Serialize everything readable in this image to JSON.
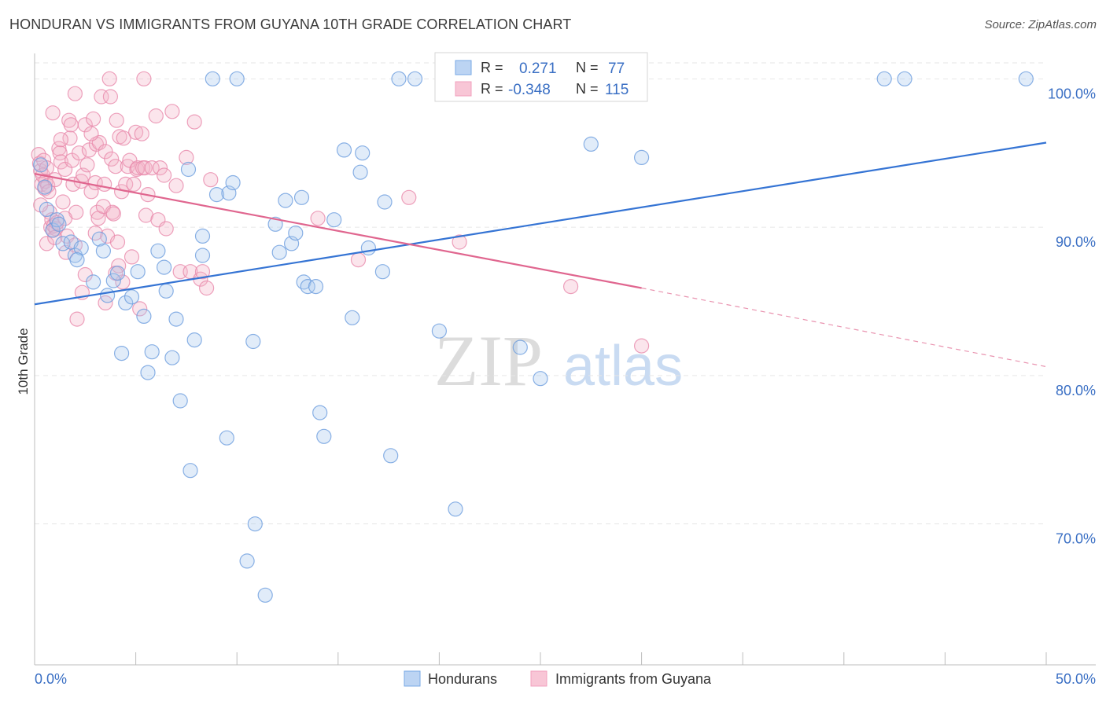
{
  "title": "HONDURAN VS IMMIGRANTS FROM GUYANA 10TH GRADE CORRELATION CHART",
  "source": "Source: ZipAtlas.com",
  "watermark": {
    "zip": "ZIP",
    "atlas": "atlas"
  },
  "legend_box": {
    "rows": [
      {
        "r_label": "R =",
        "r_value": "0.271",
        "n_label": "N =",
        "n_value": "77",
        "color": "#7aaae6"
      },
      {
        "r_label": "R =",
        "r_value": "-0.348",
        "n_label": "N =",
        "n_value": "115",
        "color": "#f2a0bd"
      }
    ]
  },
  "bottom_legend": [
    {
      "label": "Hondurans",
      "color": "#7aaae6"
    },
    {
      "label": "Immigrants from Guyana",
      "color": "#f2a0bd"
    }
  ],
  "chart_data": {
    "type": "scatter",
    "title": "HONDURAN VS IMMIGRANTS FROM GUYANA 10TH GRADE CORRELATION CHART",
    "xlabel": "",
    "ylabel": "10th Grade",
    "xlim": [
      0,
      50
    ],
    "ylim": [
      60.5,
      101.5
    ],
    "x_tick_labels": [
      "0.0%",
      "50.0%"
    ],
    "y_ticks": [
      70,
      80,
      90,
      100
    ],
    "y_tick_labels": [
      "70.0%",
      "80.0%",
      "90.0%",
      "100.0%"
    ],
    "grid": true,
    "colors": {
      "hondurans": "#3574d4",
      "guyana": "#e0668f"
    },
    "series": [
      {
        "name": "Hondurans",
        "trend": {
          "x": [
            0.0,
            50.0
          ],
          "y": [
            84.8,
            95.7
          ]
        },
        "points": [
          [
            0.6,
            91.2
          ],
          [
            0.9,
            89.8
          ],
          [
            1.1,
            90.5
          ],
          [
            1.4,
            88.9
          ],
          [
            1.8,
            89.0
          ],
          [
            2.0,
            88.1
          ],
          [
            2.3,
            88.6
          ],
          [
            2.1,
            87.8
          ],
          [
            2.9,
            86.3
          ],
          [
            3.2,
            89.2
          ],
          [
            3.4,
            88.4
          ],
          [
            3.6,
            85.4
          ],
          [
            3.9,
            86.4
          ],
          [
            4.1,
            86.9
          ],
          [
            4.3,
            81.5
          ],
          [
            4.5,
            84.9
          ],
          [
            4.8,
            85.3
          ],
          [
            5.1,
            87.0
          ],
          [
            5.4,
            84.0
          ],
          [
            5.6,
            80.2
          ],
          [
            5.8,
            81.6
          ],
          [
            6.1,
            88.4
          ],
          [
            6.4,
            87.3
          ],
          [
            6.5,
            85.7
          ],
          [
            6.8,
            81.2
          ],
          [
            7.0,
            83.8
          ],
          [
            7.2,
            78.3
          ],
          [
            7.6,
            93.9
          ],
          [
            7.7,
            73.6
          ],
          [
            7.9,
            82.4
          ],
          [
            8.3,
            89.4
          ],
          [
            8.3,
            88.1
          ],
          [
            8.8,
            100.0
          ],
          [
            9.0,
            92.2
          ],
          [
            9.5,
            75.8
          ],
          [
            9.6,
            92.3
          ],
          [
            9.8,
            93.0
          ],
          [
            10.0,
            100.0
          ],
          [
            10.5,
            67.5
          ],
          [
            10.8,
            82.3
          ],
          [
            10.9,
            70.0
          ],
          [
            11.4,
            65.2
          ],
          [
            11.9,
            90.2
          ],
          [
            12.1,
            88.3
          ],
          [
            12.4,
            91.8
          ],
          [
            12.7,
            88.9
          ],
          [
            12.9,
            89.6
          ],
          [
            13.2,
            92.0
          ],
          [
            13.3,
            86.3
          ],
          [
            13.5,
            86.0
          ],
          [
            13.9,
            86.0
          ],
          [
            14.1,
            77.5
          ],
          [
            14.3,
            75.9
          ],
          [
            14.8,
            90.5
          ],
          [
            15.3,
            95.2
          ],
          [
            15.7,
            83.9
          ],
          [
            16.1,
            93.7
          ],
          [
            16.2,
            95.0
          ],
          [
            16.5,
            88.6
          ],
          [
            17.2,
            87.0
          ],
          [
            17.3,
            91.7
          ],
          [
            17.6,
            74.6
          ],
          [
            18.0,
            100.0
          ],
          [
            18.8,
            100.0
          ],
          [
            20.0,
            83.0
          ],
          [
            20.8,
            71.0
          ],
          [
            24.0,
            81.9
          ],
          [
            25.0,
            79.8
          ],
          [
            27.5,
            95.6
          ],
          [
            28.0,
            100.0
          ],
          [
            30.0,
            94.7
          ],
          [
            42.0,
            100.0
          ],
          [
            43.0,
            100.0
          ],
          [
            49.0,
            100.0
          ],
          [
            0.3,
            94.2
          ],
          [
            0.5,
            92.7
          ],
          [
            1.2,
            90.2
          ]
        ]
      },
      {
        "name": "Immigrants from Guyana",
        "trend": {
          "x": [
            0.0,
            30.0
          ],
          "y": [
            93.6,
            85.9
          ]
        },
        "trend_dashed": {
          "x": [
            30.0,
            50.0
          ],
          "y": [
            85.9,
            80.6
          ]
        },
        "points": [
          [
            0.2,
            94.9
          ],
          [
            0.25,
            94.3
          ],
          [
            0.3,
            93.8
          ],
          [
            0.35,
            92.9
          ],
          [
            0.4,
            93.5
          ],
          [
            0.45,
            94.5
          ],
          [
            0.5,
            92.6
          ],
          [
            0.55,
            93.1
          ],
          [
            0.6,
            94.0
          ],
          [
            0.65,
            92.8
          ],
          [
            0.7,
            92.4
          ],
          [
            0.75,
            91.0
          ],
          [
            0.8,
            90.0
          ],
          [
            0.85,
            90.5
          ],
          [
            0.9,
            89.8
          ],
          [
            0.95,
            90.1
          ],
          [
            1.0,
            93.2
          ],
          [
            1.05,
            89.9
          ],
          [
            1.1,
            90.3
          ],
          [
            1.2,
            95.3
          ],
          [
            1.25,
            95.0
          ],
          [
            1.3,
            94.4
          ],
          [
            1.4,
            91.7
          ],
          [
            1.5,
            93.9
          ],
          [
            1.55,
            88.3
          ],
          [
            1.6,
            89.4
          ],
          [
            1.7,
            97.2
          ],
          [
            1.75,
            96.0
          ],
          [
            1.8,
            96.9
          ],
          [
            1.85,
            94.5
          ],
          [
            1.9,
            92.9
          ],
          [
            2.0,
            99.0
          ],
          [
            2.05,
            91.0
          ],
          [
            2.1,
            83.8
          ],
          [
            2.2,
            95.0
          ],
          [
            2.3,
            93.1
          ],
          [
            2.35,
            85.6
          ],
          [
            2.4,
            93.5
          ],
          [
            2.5,
            96.9
          ],
          [
            2.6,
            94.2
          ],
          [
            2.7,
            95.2
          ],
          [
            2.8,
            92.4
          ],
          [
            2.9,
            97.3
          ],
          [
            3.0,
            93.0
          ],
          [
            3.05,
            95.6
          ],
          [
            3.1,
            91.0
          ],
          [
            3.15,
            90.6
          ],
          [
            3.2,
            95.7
          ],
          [
            3.3,
            98.8
          ],
          [
            3.4,
            91.4
          ],
          [
            3.45,
            92.9
          ],
          [
            3.5,
            95.1
          ],
          [
            3.6,
            89.4
          ],
          [
            3.7,
            100.0
          ],
          [
            3.75,
            98.8
          ],
          [
            3.8,
            94.6
          ],
          [
            3.85,
            91.0
          ],
          [
            3.9,
            90.9
          ],
          [
            4.0,
            94.1
          ],
          [
            4.05,
            97.2
          ],
          [
            4.1,
            89.0
          ],
          [
            4.15,
            87.4
          ],
          [
            4.2,
            96.1
          ],
          [
            4.3,
            92.4
          ],
          [
            4.35,
            86.3
          ],
          [
            4.4,
            96.0
          ],
          [
            4.5,
            92.9
          ],
          [
            4.6,
            94.1
          ],
          [
            4.7,
            94.5
          ],
          [
            4.8,
            88.0
          ],
          [
            4.9,
            92.9
          ],
          [
            5.0,
            96.4
          ],
          [
            5.05,
            93.9
          ],
          [
            5.1,
            94.0
          ],
          [
            5.2,
            84.5
          ],
          [
            5.3,
            96.3
          ],
          [
            5.35,
            94.0
          ],
          [
            5.4,
            100.0
          ],
          [
            5.45,
            94.0
          ],
          [
            5.5,
            90.8
          ],
          [
            5.6,
            92.2
          ],
          [
            5.8,
            94.0
          ],
          [
            6.0,
            97.5
          ],
          [
            6.1,
            90.5
          ],
          [
            6.2,
            94.0
          ],
          [
            6.4,
            93.5
          ],
          [
            6.5,
            89.9
          ],
          [
            6.8,
            97.8
          ],
          [
            7.0,
            92.8
          ],
          [
            7.2,
            87.0
          ],
          [
            7.5,
            94.7
          ],
          [
            7.7,
            87.0
          ],
          [
            7.9,
            97.1
          ],
          [
            8.2,
            86.5
          ],
          [
            8.3,
            87.0
          ],
          [
            8.5,
            85.9
          ],
          [
            8.7,
            93.2
          ],
          [
            14.0,
            90.6
          ],
          [
            16.0,
            87.8
          ],
          [
            18.5,
            92.0
          ],
          [
            21.0,
            89.0
          ],
          [
            26.5,
            86.0
          ],
          [
            30.0,
            82.0
          ],
          [
            0.3,
            91.5
          ],
          [
            0.6,
            88.9
          ],
          [
            1.0,
            89.3
          ],
          [
            1.5,
            90.6
          ],
          [
            2.0,
            88.8
          ],
          [
            2.5,
            86.8
          ],
          [
            3.0,
            89.6
          ],
          [
            3.5,
            84.9
          ],
          [
            4.0,
            86.9
          ],
          [
            1.3,
            95.9
          ],
          [
            0.9,
            97.7
          ],
          [
            2.8,
            96.3
          ]
        ]
      }
    ]
  }
}
